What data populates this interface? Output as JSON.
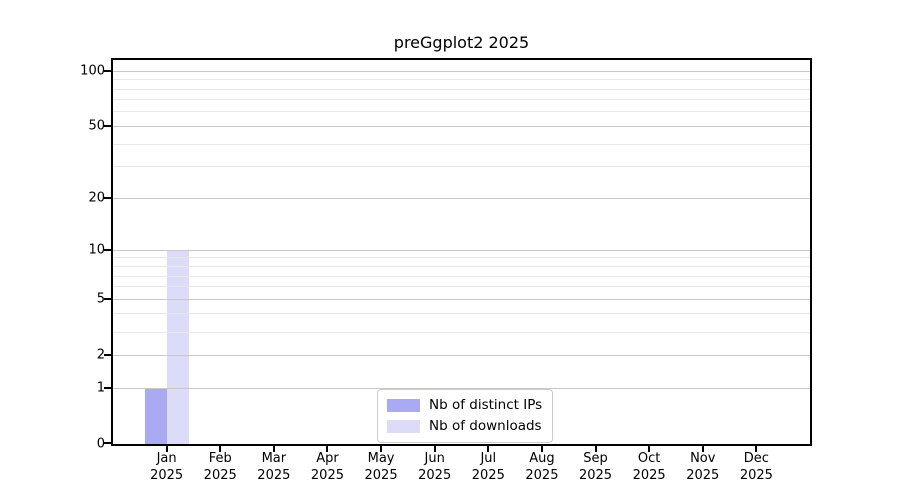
{
  "title": "preGgplot2 2025",
  "chart_data": {
    "type": "bar",
    "title": "preGgplot2 2025",
    "xlabel": "",
    "ylabel": "",
    "scale": "log1p",
    "categories": [
      "Jan",
      "Feb",
      "Mar",
      "Apr",
      "May",
      "Jun",
      "Jul",
      "Aug",
      "Sep",
      "Oct",
      "Nov",
      "Dec"
    ],
    "year": "2025",
    "series": [
      {
        "name": "Nb of distinct IPs",
        "color": "#aaaaf2",
        "values": [
          1,
          0,
          0,
          0,
          0,
          0,
          0,
          0,
          0,
          0,
          0,
          0
        ]
      },
      {
        "name": "Nb of downloads",
        "color": "#dddcf8",
        "values": [
          10,
          0,
          0,
          0,
          0,
          0,
          0,
          0,
          0,
          0,
          0,
          0
        ]
      }
    ],
    "yticks": [
      0,
      1,
      2,
      5,
      10,
      20,
      50,
      100
    ],
    "minor_yticks": [
      3,
      4,
      6,
      7,
      8,
      9,
      30,
      40,
      60,
      70,
      80,
      90
    ],
    "ylim": [
      0,
      115
    ],
    "grid": true,
    "legend_position": "lower center"
  },
  "colors": {
    "major_grid": "#c9c9c9",
    "minor_grid": "#e8e8e8",
    "spine": "#000000",
    "background": "#ffffff"
  }
}
